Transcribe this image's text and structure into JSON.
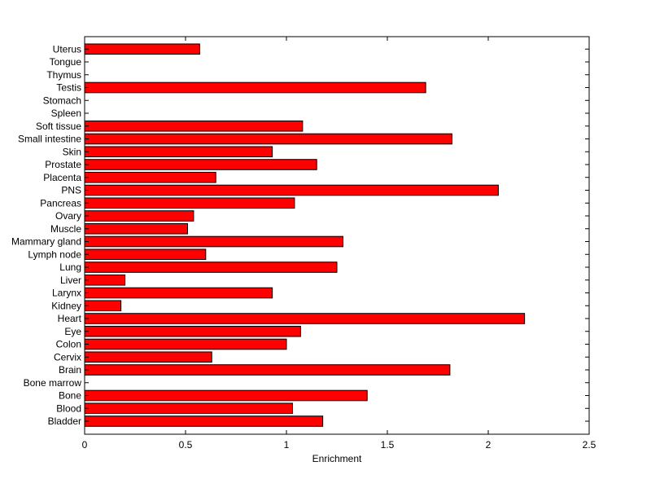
{
  "chart_data": {
    "type": "bar",
    "orientation": "horizontal",
    "title": "",
    "xlabel": "Enrichment",
    "ylabel": "",
    "xlim": [
      0,
      2.5
    ],
    "xticks": [
      0,
      0.5,
      1,
      1.5,
      2,
      2.5
    ],
    "xtick_labels": [
      "0",
      "0.5",
      "1",
      "1.5",
      "2",
      "2.5"
    ],
    "grid": false,
    "legend": "none",
    "bar_color": "#ff0000",
    "bar_edge_color": "#000000",
    "categories": [
      "Bladder",
      "Blood",
      "Bone",
      "Bone marrow",
      "Brain",
      "Cervix",
      "Colon",
      "Eye",
      "Heart",
      "Kidney",
      "Larynx",
      "Liver",
      "Lung",
      "Lymph node",
      "Mammary gland",
      "Muscle",
      "Ovary",
      "Pancreas",
      "PNS",
      "Placenta",
      "Prostate",
      "Skin",
      "Small intestine",
      "Soft tissue",
      "Spleen",
      "Stomach",
      "Testis",
      "Thymus",
      "Tongue",
      "Uterus"
    ],
    "values": [
      1.18,
      1.03,
      1.4,
      0,
      1.81,
      0.63,
      1.0,
      1.07,
      2.18,
      0.18,
      0.93,
      0.2,
      1.25,
      0.6,
      1.28,
      0.51,
      0.54,
      1.04,
      2.05,
      0.65,
      1.15,
      0.93,
      1.82,
      1.08,
      0,
      0,
      1.69,
      0,
      0,
      0.57
    ]
  }
}
